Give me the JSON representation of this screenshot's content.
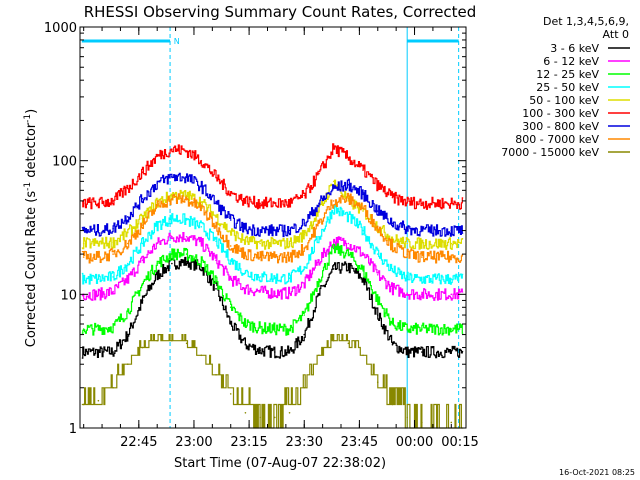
{
  "chart_data": {
    "type": "line",
    "title": "RHESSI Observing Summary Count Rates, Corrected",
    "xlabel": "Start Time (07-Aug-07 22:38:02)",
    "ylabel_main": "Corrected Count Rate (s",
    "ylabel_sup1": "-1",
    "ylabel_mid": " detector",
    "ylabel_sup2": "-1",
    "ylabel_end": ")",
    "yscale": "log",
    "ylim": [
      1,
      1000
    ],
    "yticks": [
      {
        "value": 1,
        "label": "1"
      },
      {
        "value": 10,
        "label": "10"
      },
      {
        "value": 100,
        "label": "100"
      },
      {
        "value": 1000,
        "label": "1000"
      }
    ],
    "xlim_minutes": [
      -9,
      96
    ],
    "xticks": [
      {
        "m": 7,
        "label": "22:45"
      },
      {
        "m": 22,
        "label": "23:00"
      },
      {
        "m": 37,
        "label": "23:15"
      },
      {
        "m": 52,
        "label": "23:30"
      },
      {
        "m": 67,
        "label": "23:45"
      },
      {
        "m": 82,
        "label": "00:00"
      },
      {
        "m": 97,
        "label": "00:15"
      }
    ],
    "legend_header": [
      "Det 1,3,4,5,6,9,",
      "Att 0"
    ],
    "legend_position": "right",
    "flags": {
      "night_end": 15.5,
      "night_start": 80,
      "saa_label": "N",
      "saa_label_m": 16.5
    },
    "series": [
      {
        "name": "3 - 6 keV",
        "color": "#000000",
        "values": [
          3.7,
          3.7,
          3.7,
          5,
          9,
          14,
          17,
          17.5,
          16,
          11,
          6,
          4.2,
          3.8,
          3.7,
          3.7,
          5,
          10,
          15.5,
          16,
          13,
          7,
          4.2,
          3.7,
          3.7,
          3.7
        ]
      },
      {
        "name": "6 - 12 keV",
        "color": "#ff00ff",
        "values": [
          10,
          10,
          10.5,
          13,
          18,
          24,
          27,
          27,
          24,
          18,
          13,
          11,
          10.5,
          10.2,
          10.2,
          12,
          18,
          25,
          24,
          20,
          14,
          11,
          10.2,
          10,
          10
        ]
      },
      {
        "name": "12 - 25 keV",
        "color": "#00ff00",
        "values": [
          5.5,
          5.5,
          5.7,
          7.5,
          12,
          17,
          20,
          20,
          17.5,
          12.5,
          8,
          6,
          5.6,
          5.5,
          5.5,
          7,
          13,
          22,
          20,
          15,
          9,
          6,
          5.5,
          5.5,
          5.5
        ]
      },
      {
        "name": "25 - 50 keV",
        "color": "#00ffff",
        "values": [
          13,
          13,
          13.5,
          17,
          24,
          33,
          37,
          36,
          32,
          25,
          18,
          14.5,
          13.5,
          13.2,
          13.2,
          16,
          27,
          44,
          38,
          30,
          20,
          15,
          13.2,
          13,
          13
        ]
      },
      {
        "name": "50 - 100 keV",
        "color": "#dddd00",
        "values": [
          24,
          24,
          24.5,
          29,
          37,
          49,
          55,
          55,
          49,
          38,
          29,
          25,
          24,
          24,
          24,
          28,
          42,
          70,
          50,
          42,
          32,
          26,
          24,
          24,
          24
        ]
      },
      {
        "name": "100 - 300 keV",
        "color": "#ff0000",
        "values": [
          48,
          48,
          50,
          62,
          82,
          108,
          122,
          118,
          100,
          75,
          57,
          50,
          48,
          48,
          48,
          55,
          80,
          125,
          105,
          85,
          65,
          53,
          49,
          48,
          48
        ]
      },
      {
        "name": "300 - 800 keV",
        "color": "#0000dd",
        "values": [
          30,
          30,
          31,
          38,
          52,
          68,
          76,
          75,
          64,
          48,
          36,
          31,
          30,
          30,
          30,
          34,
          48,
          62,
          66,
          56,
          42,
          34,
          31,
          30,
          30
        ]
      },
      {
        "name": "800 - 7000 keV",
        "color": "#ff8800",
        "values": [
          19,
          19,
          20,
          24,
          33,
          46,
          52,
          51,
          44,
          32,
          23,
          20,
          19,
          19,
          19,
          22,
          34,
          50,
          52,
          44,
          31,
          23,
          20,
          19,
          19
        ]
      },
      {
        "name": "7000 - 15000 keV",
        "color": "#888800",
        "values": [
          1.5,
          1.6,
          2,
          3,
          4,
          4.5,
          4.5,
          4.3,
          3.5,
          2.5,
          1.8,
          1.3,
          1.2,
          1.2,
          1.3,
          2,
          3.5,
          4.5,
          4.3,
          3.5,
          2.2,
          1.5,
          1.2,
          1.1,
          1.1
        ]
      }
    ],
    "x_minutes": [
      -8,
      -4,
      0,
      4,
      8,
      12,
      16,
      20,
      24,
      28,
      32,
      36,
      40,
      44,
      48,
      52,
      56,
      60,
      64,
      68,
      72,
      76,
      80,
      84,
      92
    ]
  },
  "timestamp": "16-Oct-2021 08:25"
}
